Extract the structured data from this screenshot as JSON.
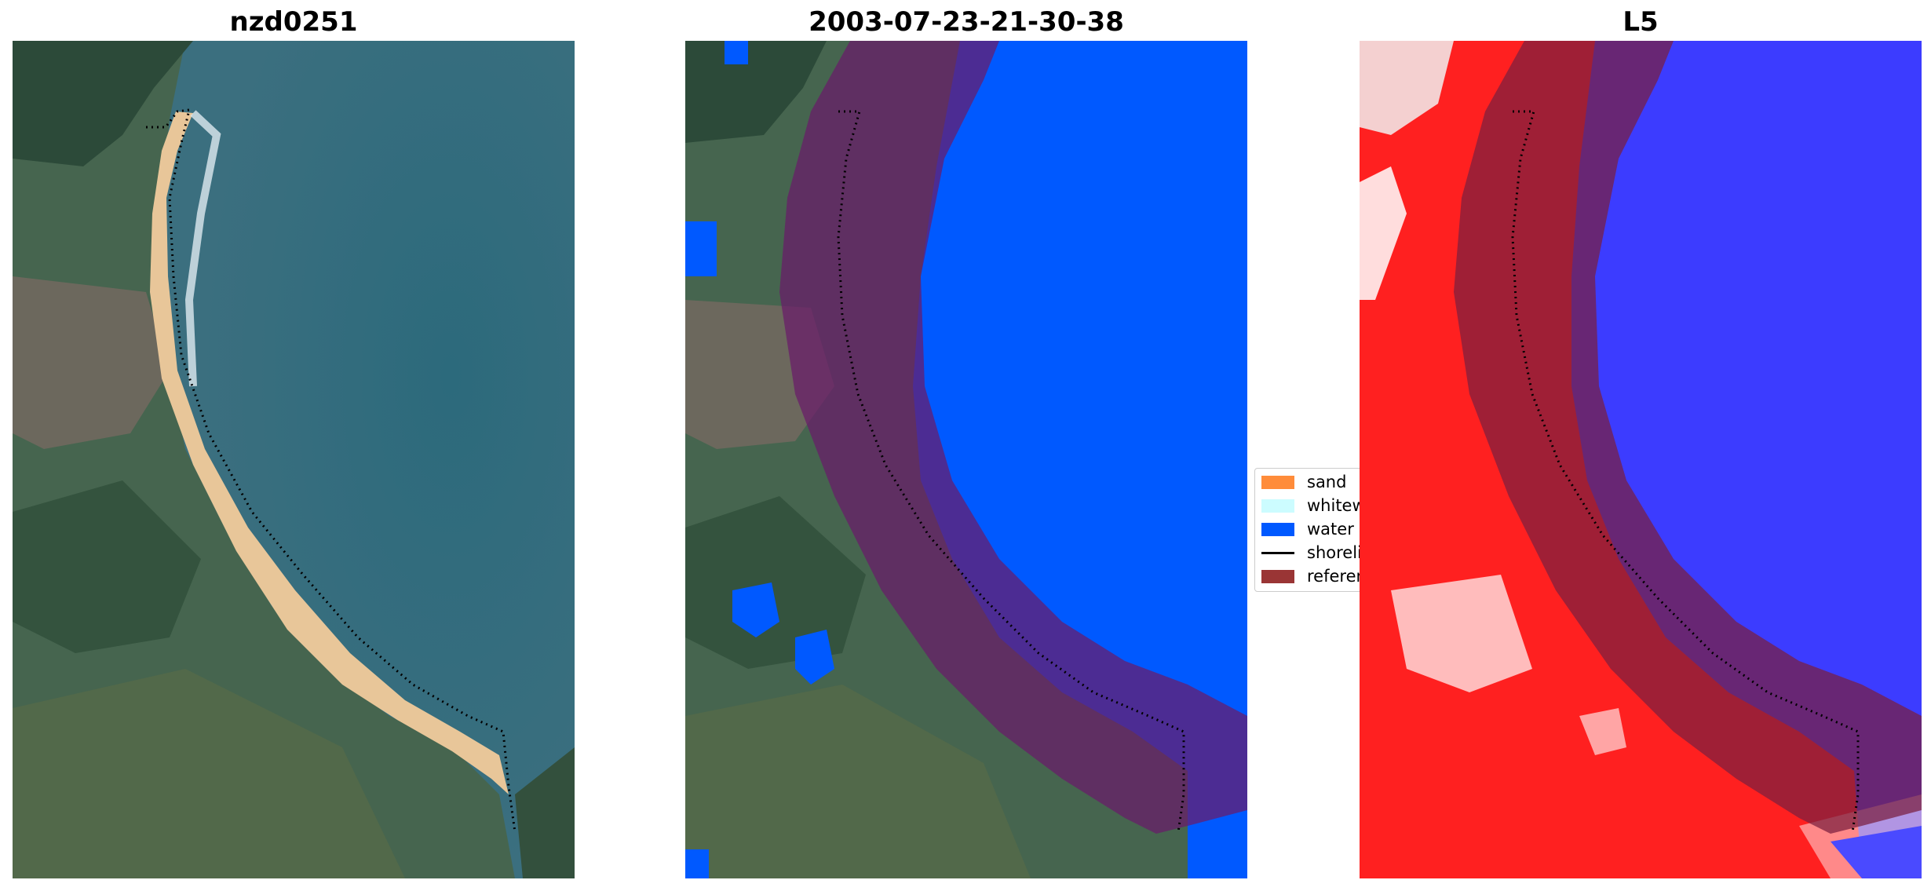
{
  "panels": [
    {
      "title": "nzd0251"
    },
    {
      "title": "2003-07-23-21-30-38"
    },
    {
      "title": "L5"
    }
  ],
  "legend": {
    "items": [
      {
        "label": "sand",
        "color": "#ff8c3a"
      },
      {
        "label": "whitewater",
        "color": "#ccfcff"
      },
      {
        "label": "water",
        "color": "#0059ff"
      },
      {
        "label": "shoreline",
        "color": "#000000"
      },
      {
        "label": "reference shoreline buffer",
        "color": "#9a3535"
      }
    ]
  },
  "colors": {
    "ocean": "#2f6d80",
    "land": "#3f6450",
    "sand": "#e5c08f",
    "water_class": "#0059ff",
    "buffer": "#7a1f3f",
    "index_high": "#ff0000",
    "index_low": "#2a2aff"
  }
}
